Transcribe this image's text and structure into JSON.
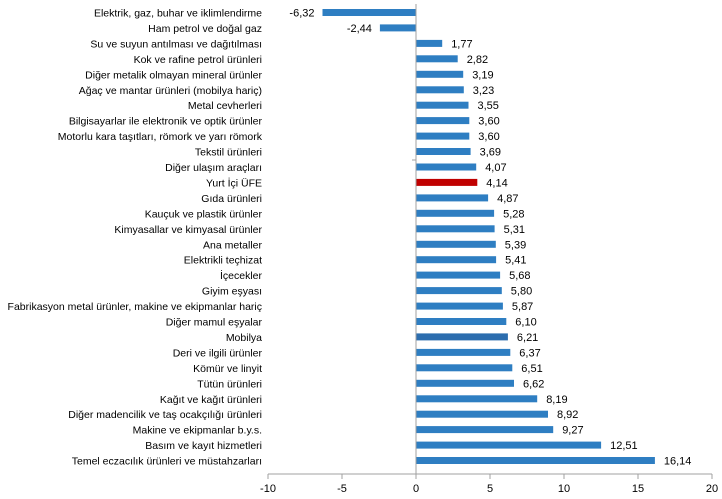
{
  "chart_data": {
    "type": "bar",
    "orientation": "horizontal",
    "title": "",
    "xlabel": "",
    "ylabel": "",
    "xlim": [
      -10,
      20
    ],
    "x_ticks": [
      -10,
      -5,
      0,
      5,
      10,
      15,
      20
    ],
    "x_tick_labels": [
      "-10",
      "-5",
      "0",
      "5",
      "10",
      "15",
      "20"
    ],
    "grid": false,
    "legend": "none",
    "colors": {
      "default": "#2E7EC2",
      "highlight": "#C00000",
      "mobilya": "#2C6DAE",
      "axis": "#A0A0A0"
    },
    "categories": [
      "Elektrik, gaz, buhar ve iklimlendirme",
      "Ham petrol ve doğal gaz",
      "Su ve suyun antılması ve dağıtılması",
      "Kok ve rafine petrol ürünleri",
      "Diğer metalik olmayan mineral ürünler",
      "Ağaç ve mantar ürünleri (mobilya hariç)",
      "Metal cevherleri",
      "Bilgisayarlar ile elektronik ve optik ürünler",
      "Motorlu kara taşıtları, römork ve yarı römork",
      "Tekstil ürünleri",
      "Diğer ulaşım araçları",
      "Yurt İçi ÜFE",
      "Gıda ürünleri",
      "Kauçuk ve plastik ürünler",
      "Kimyasallar ve kimyasal ürünler",
      "Ana metaller",
      "Elektrikli teçhizat",
      "İçecekler",
      "Giyim eşyası",
      "Fabrikasyon metal ürünler, makine ve ekipmanlar hariç",
      "Diğer mamul eşyalar",
      "Mobilya",
      "Deri ve ilgili ürünler",
      "Kömür ve linyit",
      "Tütün ürünleri",
      "Kağıt ve kağıt ürünleri",
      "Diğer madencilik ve taş ocakçılığı ürünleri",
      "Makine ve ekipmanlar b.y.s.",
      "Basım ve kayıt hizmetleri",
      "Temel eczacılık ürünleri ve müstahzarları"
    ],
    "values": [
      -6.32,
      -2.44,
      1.77,
      2.82,
      3.19,
      3.23,
      3.55,
      3.6,
      3.6,
      3.69,
      4.07,
      4.14,
      4.87,
      5.28,
      5.31,
      5.39,
      5.41,
      5.68,
      5.8,
      5.87,
      6.1,
      6.21,
      6.37,
      6.51,
      6.62,
      8.19,
      8.92,
      9.27,
      12.51,
      16.14
    ],
    "value_labels": [
      "-6,32",
      "-2,44",
      "1,77",
      "2,82",
      "3,19",
      "3,23",
      "3,55",
      "3,60",
      "3,60",
      "3,69",
      "4,07",
      "4,14",
      "4,87",
      "5,28",
      "5,31",
      "5,39",
      "5,41",
      "5,68",
      "5,80",
      "5,87",
      "6,10",
      "6,21",
      "6,37",
      "6,51",
      "6,62",
      "8,19",
      "8,92",
      "9,27",
      "12,51",
      "16,14"
    ],
    "highlight_category": "Yurt İçi ÜFE"
  }
}
